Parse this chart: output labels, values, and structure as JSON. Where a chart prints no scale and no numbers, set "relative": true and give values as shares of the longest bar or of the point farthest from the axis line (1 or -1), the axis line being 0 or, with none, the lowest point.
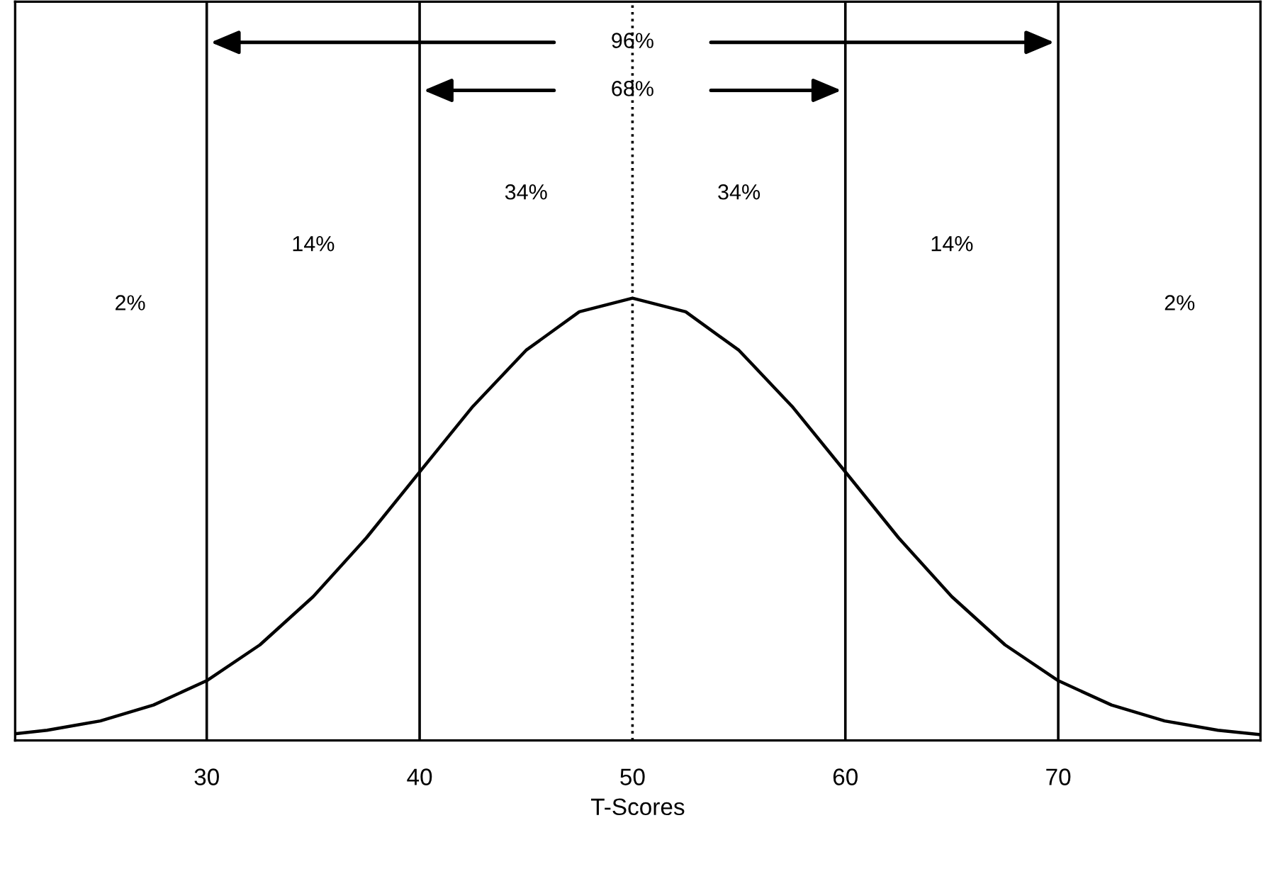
{
  "chart_data": {
    "type": "line",
    "relative": true,
    "xlabel": "T-Scores",
    "x": [
      21,
      22.5,
      25,
      27.5,
      30,
      32.5,
      35,
      37.5,
      40,
      42.5,
      45,
      47.5,
      50,
      52.5,
      55,
      57.5,
      60,
      62.5,
      65,
      67.5,
      70,
      72.5,
      75,
      77.5,
      79.5
    ],
    "series": [
      {
        "color": "#000000",
        "values": [
          0.015,
          0.023,
          0.044,
          0.08,
          0.135,
          0.216,
          0.325,
          0.458,
          0.607,
          0.755,
          0.882,
          0.969,
          1,
          0.969,
          0.882,
          0.755,
          0.607,
          0.458,
          0.325,
          0.216,
          0.135,
          0.08,
          0.044,
          0.023,
          0.013
        ]
      }
    ],
    "xlim": [
      21,
      79.5
    ],
    "xticks": [
      30,
      40,
      50,
      60,
      70
    ],
    "grid": false,
    "legend": false,
    "marker": "none",
    "line_style": "solid",
    "ref_lines": [
      {
        "axis": "x",
        "value": 30,
        "color": "#000000",
        "line_style": "solid"
      },
      {
        "axis": "x",
        "value": 40,
        "color": "#000000",
        "line_style": "solid"
      },
      {
        "axis": "x",
        "value": 50,
        "color": "#000000",
        "line_style": "dotted"
      },
      {
        "axis": "x",
        "value": 60,
        "color": "#000000",
        "line_style": "solid"
      },
      {
        "axis": "x",
        "value": 70,
        "color": "#000000",
        "line_style": "solid"
      }
    ],
    "annotations": [
      "2%",
      "14%",
      "34%",
      "34%",
      "14%",
      "2%",
      "68%",
      "96%"
    ]
  }
}
